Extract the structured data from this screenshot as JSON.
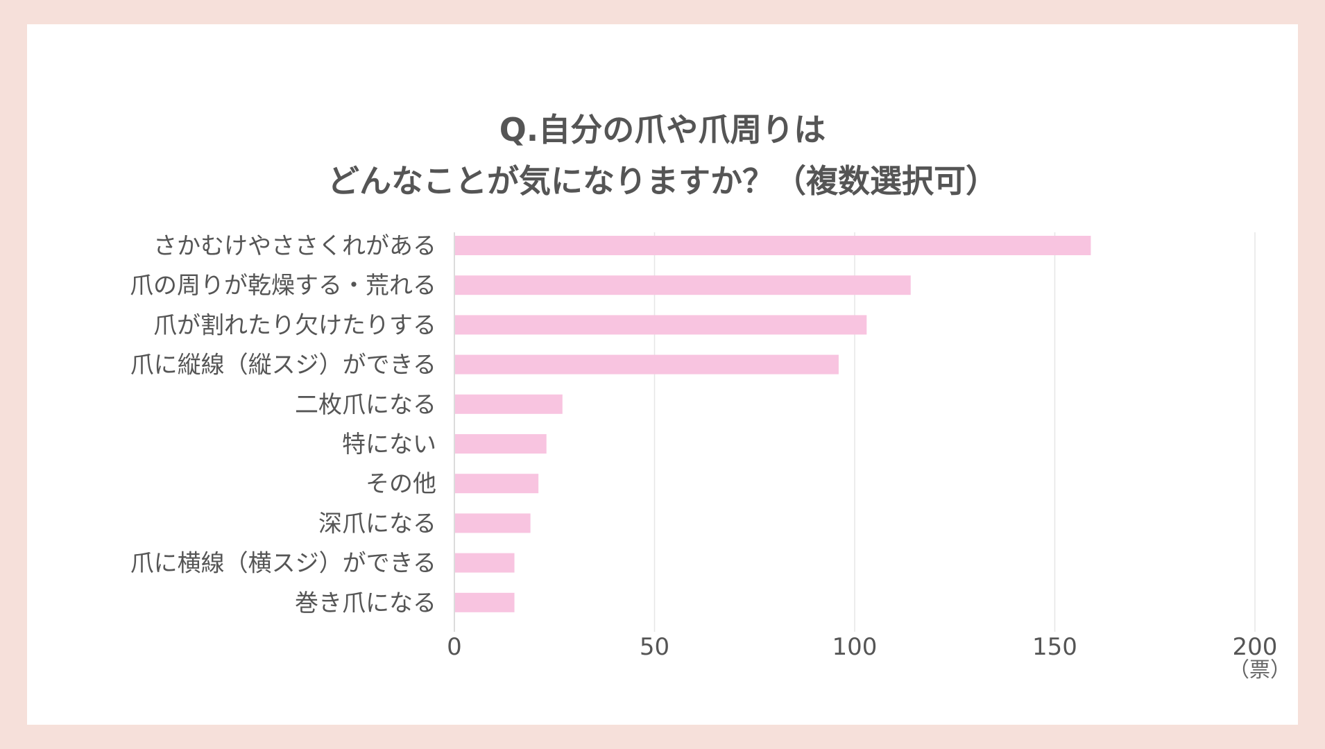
{
  "chart_data": {
    "type": "bar",
    "orientation": "horizontal",
    "title": [
      "Q.自分の爪や爪周りは",
      "どんなことが気になりますか？（複数選択可）"
    ],
    "categories": [
      "さかむけやささくれがある",
      "爪の周りが乾燥する・荒れる",
      "爪が割れたり欠けたりする",
      "爪に縦線（縦スジ）ができる",
      "二枚爪になる",
      "特にない",
      "その他",
      "深爪になる",
      "爪に横線（横スジ）ができる",
      "巻き爪になる"
    ],
    "values": [
      159,
      114,
      103,
      96,
      27,
      23,
      21,
      19,
      15,
      15
    ],
    "xlim": [
      0,
      200
    ],
    "xticks": [
      "0",
      "50",
      "100",
      "150",
      "200"
    ],
    "unit": "（票）",
    "grid": true,
    "bar_color": "#f8c4e0",
    "grid_color": "#e6e6e6",
    "text_color": "#555555"
  }
}
